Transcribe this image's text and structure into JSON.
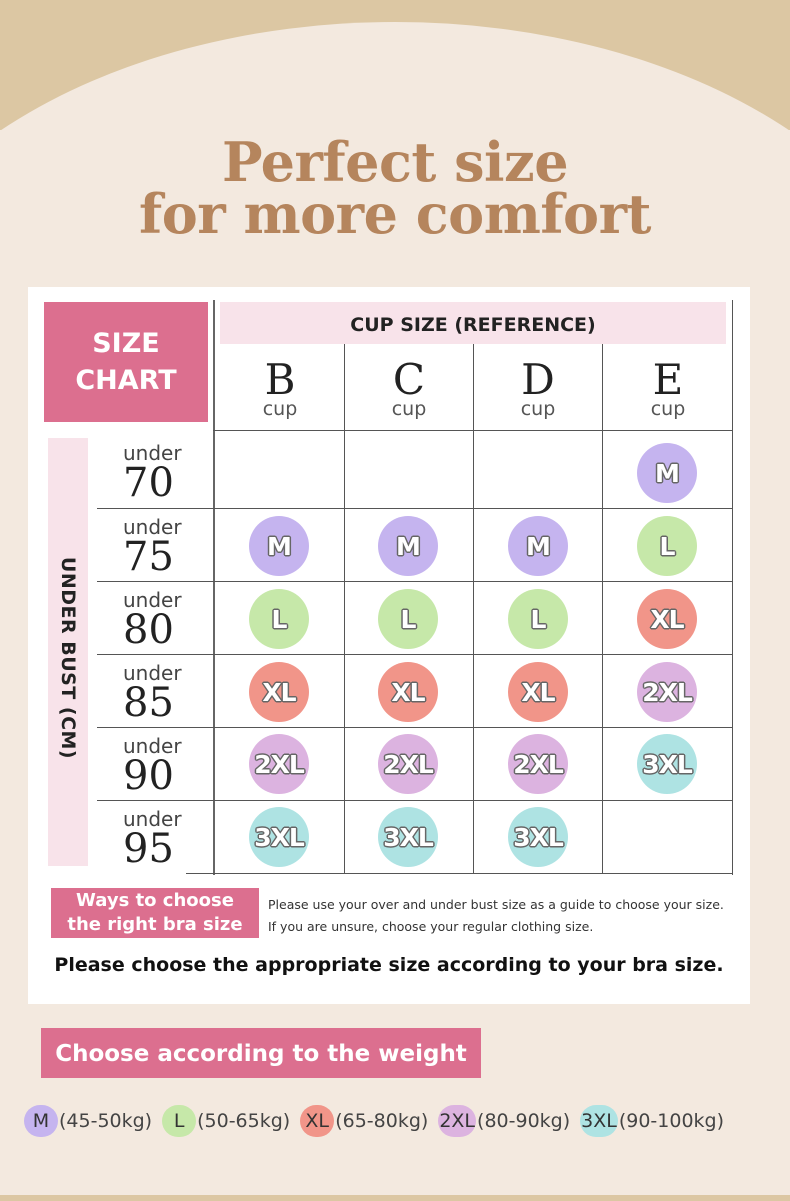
{
  "headline": {
    "line1": "Perfect size",
    "line2": "for more comfort"
  },
  "colors": {
    "M": "#c5b4ef",
    "L": "#c6e8a9",
    "XL": "#f19589",
    "2XL": "#dcb3e0",
    "3XL": "#aee3e3",
    "accent": "#dc6f8f",
    "headline": "#b5855d"
  },
  "chart": {
    "title_line1": "SIZE",
    "title_line2": "CHART",
    "cup_header": "CUP SIZE (REFERENCE)",
    "cup_word": "cup",
    "cups": [
      "B",
      "C",
      "D",
      "E"
    ],
    "side_label": "UNDER BUST (CM)",
    "under_word": "under",
    "rows": [
      {
        "band": "70",
        "sizes": [
          "",
          "",
          "",
          "M"
        ]
      },
      {
        "band": "75",
        "sizes": [
          "M",
          "M",
          "M",
          "L"
        ]
      },
      {
        "band": "80",
        "sizes": [
          "L",
          "L",
          "L",
          "XL"
        ]
      },
      {
        "band": "85",
        "sizes": [
          "XL",
          "XL",
          "XL",
          "2XL"
        ]
      },
      {
        "band": "90",
        "sizes": [
          "2XL",
          "2XL",
          "2XL",
          "3XL"
        ]
      },
      {
        "band": "95",
        "sizes": [
          "3XL",
          "3XL",
          "3XL",
          ""
        ]
      }
    ]
  },
  "ways": {
    "line1": "Ways to choose",
    "line2": "the right bra size",
    "guide_line1": "Please use your over and under bust size as a guide to choose your size.",
    "guide_line2": "If you are unsure, choose your regular clothing size."
  },
  "bra_note": "Please choose the appropriate size according to your bra size.",
  "weight": {
    "heading": "Choose according to the weight",
    "items": [
      {
        "size": "M",
        "range": "(45-50kg)"
      },
      {
        "size": "L",
        "range": "(50-65kg)"
      },
      {
        "size": "XL",
        "range": "(65-80kg)"
      },
      {
        "size": "2XL",
        "range": "(80-90kg)"
      },
      {
        "size": "3XL",
        "range": "(90-100kg)"
      }
    ]
  }
}
